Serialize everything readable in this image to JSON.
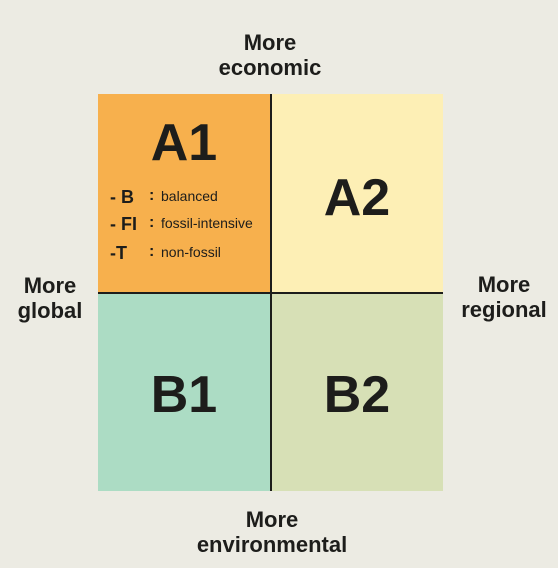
{
  "axes": {
    "top": [
      "More",
      "economic"
    ],
    "bottom": [
      "More",
      "environmental"
    ],
    "left": [
      "More",
      "global"
    ],
    "right": [
      "More",
      "regional"
    ]
  },
  "quadrants": {
    "a1": {
      "title": "A1",
      "color": "#f7b04d"
    },
    "a2": {
      "title": "A2",
      "color": "#fdefb5"
    },
    "b1": {
      "title": "B1",
      "color": "#acdcc4"
    },
    "b2": {
      "title": "B2",
      "color": "#d7e0b6"
    }
  },
  "legend": [
    {
      "code": "- B",
      "colon": ":",
      "description": "balanced"
    },
    {
      "code": "- FI",
      "colon": ":",
      "description": "fossil-intensive"
    },
    {
      "code": "-T",
      "colon": ":",
      "description": "non-fossil"
    }
  ]
}
